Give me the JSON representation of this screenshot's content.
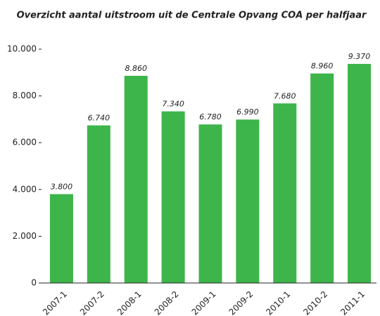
{
  "chart_data": {
    "type": "bar",
    "title": "Overzicht aantal uitstroom uit de Centrale Opvang COA per halfjaar",
    "categories": [
      "2007-1",
      "2007-2",
      "2008-1",
      "2008-2",
      "2009-1",
      "2009-2",
      "2010-1",
      "2010-2",
      "2011-1"
    ],
    "values": [
      3800,
      6740,
      8860,
      7340,
      6780,
      6990,
      7680,
      8960,
      9370
    ],
    "value_labels": [
      "3.800",
      "6.740",
      "8.860",
      "7.340",
      "6.780",
      "6.990",
      "7.680",
      "8.960",
      "9.370"
    ],
    "color": "#3db54a",
    "ylim": [
      0,
      10000
    ],
    "yticks": [
      0,
      {
        "value": 2000,
        "label": "2.000"
      },
      {
        "value": 4000,
        "label": "4.000"
      },
      {
        "value": 6000,
        "label": "6.000"
      },
      {
        "value": 8000,
        "label": "8.000"
      },
      {
        "value": 10000,
        "label": "10.000"
      }
    ],
    "grid": false
  }
}
